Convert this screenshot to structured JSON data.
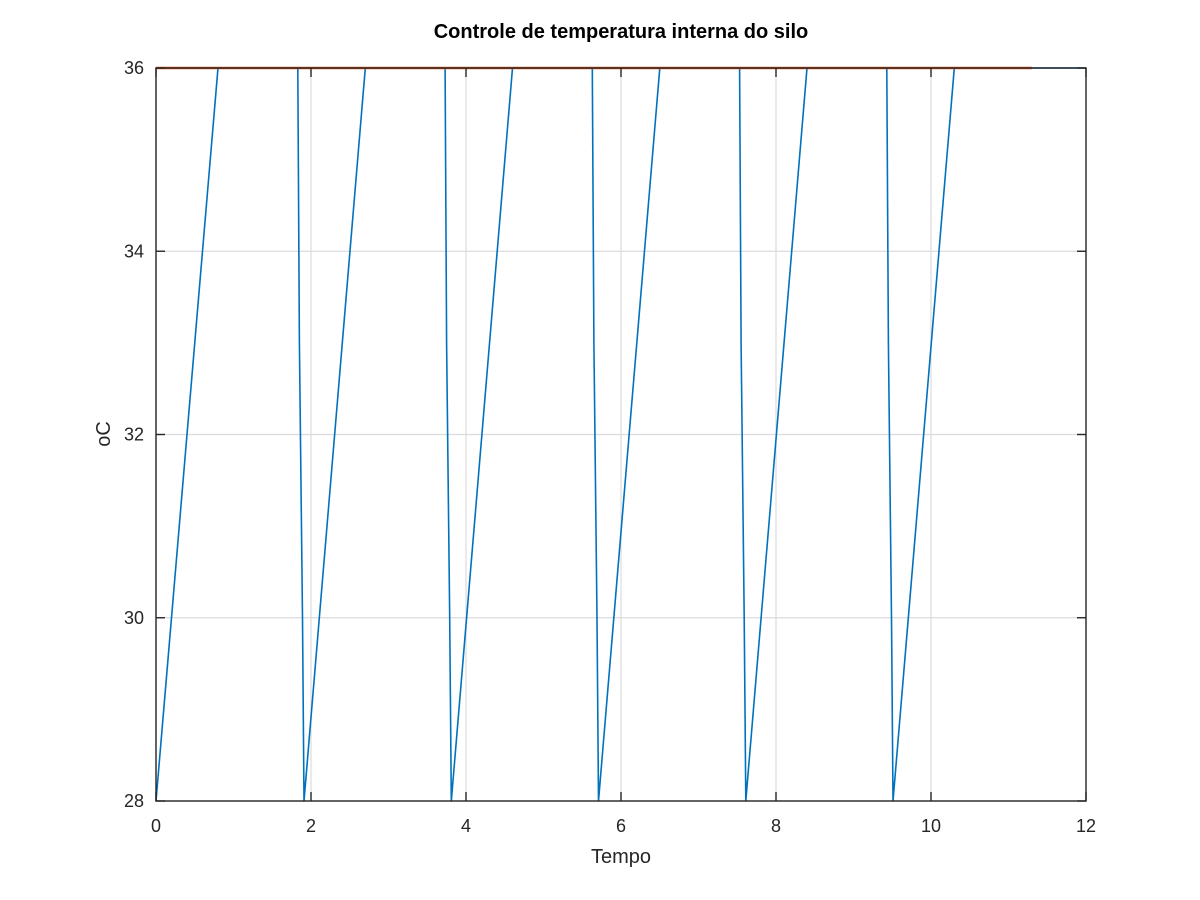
{
  "chart_data": {
    "type": "line",
    "title": "Controle de temperatura interna do silo",
    "xlabel": "Tempo",
    "ylabel": "oC",
    "xlim": [
      0,
      12
    ],
    "ylim": [
      28,
      36
    ],
    "xticks": [
      "0",
      "2",
      "4",
      "6",
      "8",
      "10",
      "12"
    ],
    "yticks": [
      "28",
      "30",
      "32",
      "34",
      "36"
    ],
    "grid": true,
    "legend": "none",
    "series": [
      {
        "color": "#0072bd",
        "points": [
          [
            0.0,
            28.0
          ],
          [
            0.8,
            36.0
          ],
          [
            1.83,
            36.0
          ],
          [
            1.85,
            33.0
          ],
          [
            1.89,
            30.0
          ],
          [
            1.91,
            28.0
          ],
          [
            2.7,
            36.0
          ],
          [
            3.73,
            36.0
          ],
          [
            3.75,
            33.0
          ],
          [
            3.79,
            30.0
          ],
          [
            3.81,
            28.0
          ],
          [
            4.6,
            36.0
          ],
          [
            5.63,
            36.0
          ],
          [
            5.65,
            33.0
          ],
          [
            5.69,
            30.0
          ],
          [
            5.71,
            28.0
          ],
          [
            6.5,
            36.0
          ],
          [
            7.53,
            36.0
          ],
          [
            7.55,
            33.0
          ],
          [
            7.59,
            30.0
          ],
          [
            7.61,
            28.0
          ],
          [
            8.4,
            36.0
          ],
          [
            9.43,
            36.0
          ],
          [
            9.45,
            33.0
          ],
          [
            9.49,
            30.0
          ],
          [
            9.51,
            28.0
          ],
          [
            10.3,
            36.0
          ],
          [
            12.0,
            36.0
          ]
        ]
      },
      {
        "color": "#d95319",
        "points": [
          [
            0.0,
            36.0
          ],
          [
            11.3,
            36.0
          ]
        ]
      }
    ]
  }
}
